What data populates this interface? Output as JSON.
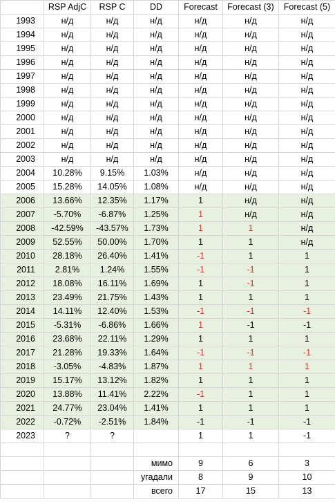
{
  "headers": [
    "",
    "RSP AdjC",
    "RSP C",
    "DD",
    "Forecast",
    "Forecast (3)",
    "Forecast (5)"
  ],
  "rows": [
    {
      "year": "1993",
      "adj": "н/д",
      "c": "н/д",
      "dd": "н/д",
      "f": "н/д",
      "f3": "н/д",
      "f5": "н/д",
      "green": false,
      "red": [
        false,
        false,
        false
      ]
    },
    {
      "year": "1994",
      "adj": "н/д",
      "c": "н/д",
      "dd": "н/д",
      "f": "н/д",
      "f3": "н/д",
      "f5": "н/д",
      "green": false,
      "red": [
        false,
        false,
        false
      ]
    },
    {
      "year": "1995",
      "adj": "н/д",
      "c": "н/д",
      "dd": "н/д",
      "f": "н/д",
      "f3": "н/д",
      "f5": "н/д",
      "green": false,
      "red": [
        false,
        false,
        false
      ]
    },
    {
      "year": "1996",
      "adj": "н/д",
      "c": "н/д",
      "dd": "н/д",
      "f": "н/д",
      "f3": "н/д",
      "f5": "н/д",
      "green": false,
      "red": [
        false,
        false,
        false
      ]
    },
    {
      "year": "1997",
      "adj": "н/д",
      "c": "н/д",
      "dd": "н/д",
      "f": "н/д",
      "f3": "н/д",
      "f5": "н/д",
      "green": false,
      "red": [
        false,
        false,
        false
      ]
    },
    {
      "year": "1998",
      "adj": "н/д",
      "c": "н/д",
      "dd": "н/д",
      "f": "н/д",
      "f3": "н/д",
      "f5": "н/д",
      "green": false,
      "red": [
        false,
        false,
        false
      ]
    },
    {
      "year": "1999",
      "adj": "н/д",
      "c": "н/д",
      "dd": "н/д",
      "f": "н/д",
      "f3": "н/д",
      "f5": "н/д",
      "green": false,
      "red": [
        false,
        false,
        false
      ]
    },
    {
      "year": "2000",
      "adj": "н/д",
      "c": "н/д",
      "dd": "н/д",
      "f": "н/д",
      "f3": "н/д",
      "f5": "н/д",
      "green": false,
      "red": [
        false,
        false,
        false
      ]
    },
    {
      "year": "2001",
      "adj": "н/д",
      "c": "н/д",
      "dd": "н/д",
      "f": "н/д",
      "f3": "н/д",
      "f5": "н/д",
      "green": false,
      "red": [
        false,
        false,
        false
      ]
    },
    {
      "year": "2002",
      "adj": "н/д",
      "c": "н/д",
      "dd": "н/д",
      "f": "н/д",
      "f3": "н/д",
      "f5": "н/д",
      "green": false,
      "red": [
        false,
        false,
        false
      ]
    },
    {
      "year": "2003",
      "adj": "н/д",
      "c": "н/д",
      "dd": "н/д",
      "f": "н/д",
      "f3": "н/д",
      "f5": "н/д",
      "green": false,
      "red": [
        false,
        false,
        false
      ]
    },
    {
      "year": "2004",
      "adj": "10.28%",
      "c": "9.15%",
      "dd": "1.03%",
      "f": "н/д",
      "f3": "н/д",
      "f5": "н/д",
      "green": false,
      "red": [
        false,
        false,
        false
      ]
    },
    {
      "year": "2005",
      "adj": "15.28%",
      "c": "14.05%",
      "dd": "1.08%",
      "f": "н/д",
      "f3": "н/д",
      "f5": "н/д",
      "green": false,
      "red": [
        false,
        false,
        false
      ]
    },
    {
      "year": "2006",
      "adj": "13.66%",
      "c": "12.35%",
      "dd": "1.17%",
      "f": "1",
      "f3": "н/д",
      "f5": "н/д",
      "green": true,
      "red": [
        false,
        false,
        false
      ]
    },
    {
      "year": "2007",
      "adj": "-5.70%",
      "c": "-6.87%",
      "dd": "1.25%",
      "f": "1",
      "f3": "н/д",
      "f5": "н/д",
      "green": true,
      "red": [
        true,
        false,
        false
      ]
    },
    {
      "year": "2008",
      "adj": "-42.59%",
      "c": "-43.57%",
      "dd": "1.73%",
      "f": "1",
      "f3": "1",
      "f5": "н/д",
      "green": true,
      "red": [
        true,
        true,
        false
      ]
    },
    {
      "year": "2009",
      "adj": "52.55%",
      "c": "50.00%",
      "dd": "1.70%",
      "f": "1",
      "f3": "1",
      "f5": "н/д",
      "green": true,
      "red": [
        false,
        false,
        false
      ]
    },
    {
      "year": "2010",
      "adj": "28.18%",
      "c": "26.40%",
      "dd": "1.41%",
      "f": "-1",
      "f3": "1",
      "f5": "1",
      "green": true,
      "red": [
        true,
        false,
        false
      ]
    },
    {
      "year": "2011",
      "adj": "2.81%",
      "c": "1.24%",
      "dd": "1.55%",
      "f": "-1",
      "f3": "-1",
      "f5": "1",
      "green": true,
      "red": [
        true,
        true,
        false
      ]
    },
    {
      "year": "2012",
      "adj": "18.08%",
      "c": "16.11%",
      "dd": "1.69%",
      "f": "1",
      "f3": "-1",
      "f5": "1",
      "green": true,
      "red": [
        false,
        true,
        false
      ]
    },
    {
      "year": "2013",
      "adj": "23.49%",
      "c": "21.75%",
      "dd": "1.43%",
      "f": "1",
      "f3": "1",
      "f5": "1",
      "green": true,
      "red": [
        false,
        false,
        false
      ]
    },
    {
      "year": "2014",
      "adj": "14.11%",
      "c": "12.40%",
      "dd": "1.53%",
      "f": "-1",
      "f3": "-1",
      "f5": "-1",
      "green": true,
      "red": [
        true,
        true,
        true
      ]
    },
    {
      "year": "2015",
      "adj": "-5.31%",
      "c": "-6.86%",
      "dd": "1.66%",
      "f": "1",
      "f3": "-1",
      "f5": "-1",
      "green": true,
      "red": [
        true,
        false,
        false
      ]
    },
    {
      "year": "2016",
      "adj": "23.68%",
      "c": "22.11%",
      "dd": "1.29%",
      "f": "1",
      "f3": "1",
      "f5": "1",
      "green": true,
      "red": [
        false,
        false,
        false
      ]
    },
    {
      "year": "2017",
      "adj": "21.28%",
      "c": "19.33%",
      "dd": "1.64%",
      "f": "-1",
      "f3": "-1",
      "f5": "-1",
      "green": true,
      "red": [
        true,
        true,
        true
      ]
    },
    {
      "year": "2018",
      "adj": "-3.05%",
      "c": "-4.83%",
      "dd": "1.87%",
      "f": "1",
      "f3": "1",
      "f5": "1",
      "green": true,
      "red": [
        true,
        true,
        true
      ]
    },
    {
      "year": "2019",
      "adj": "15.17%",
      "c": "13.12%",
      "dd": "1.82%",
      "f": "1",
      "f3": "1",
      "f5": "1",
      "green": true,
      "red": [
        false,
        false,
        false
      ]
    },
    {
      "year": "2020",
      "adj": "13.88%",
      "c": "11.41%",
      "dd": "2.22%",
      "f": "-1",
      "f3": "1",
      "f5": "1",
      "green": true,
      "red": [
        true,
        false,
        false
      ]
    },
    {
      "year": "2021",
      "adj": "24.77%",
      "c": "23.04%",
      "dd": "1.41%",
      "f": "1",
      "f3": "1",
      "f5": "1",
      "green": true,
      "red": [
        false,
        false,
        false
      ]
    },
    {
      "year": "2022",
      "adj": "-0.72%",
      "c": "-2.51%",
      "dd": "1.84%",
      "f": "-1",
      "f3": "-1",
      "f5": "-1",
      "green": true,
      "red": [
        false,
        false,
        false
      ]
    },
    {
      "year": "2023",
      "adj": "?",
      "c": "?",
      "dd": "",
      "f": "1",
      "f3": "1",
      "f5": "-1",
      "green": false,
      "red": [
        false,
        false,
        false
      ]
    }
  ],
  "summary": [
    {
      "label": "мимо",
      "f": "9",
      "f3": "6",
      "f5": "3"
    },
    {
      "label": "угадали",
      "f": "8",
      "f3": "9",
      "f5": "10"
    },
    {
      "label": "всего",
      "f": "17",
      "f3": "15",
      "f5": "13"
    }
  ],
  "colors": {
    "green_fill": "#e8f0df",
    "miss_red": "#d0342c",
    "grid": "#d4d4d4"
  }
}
